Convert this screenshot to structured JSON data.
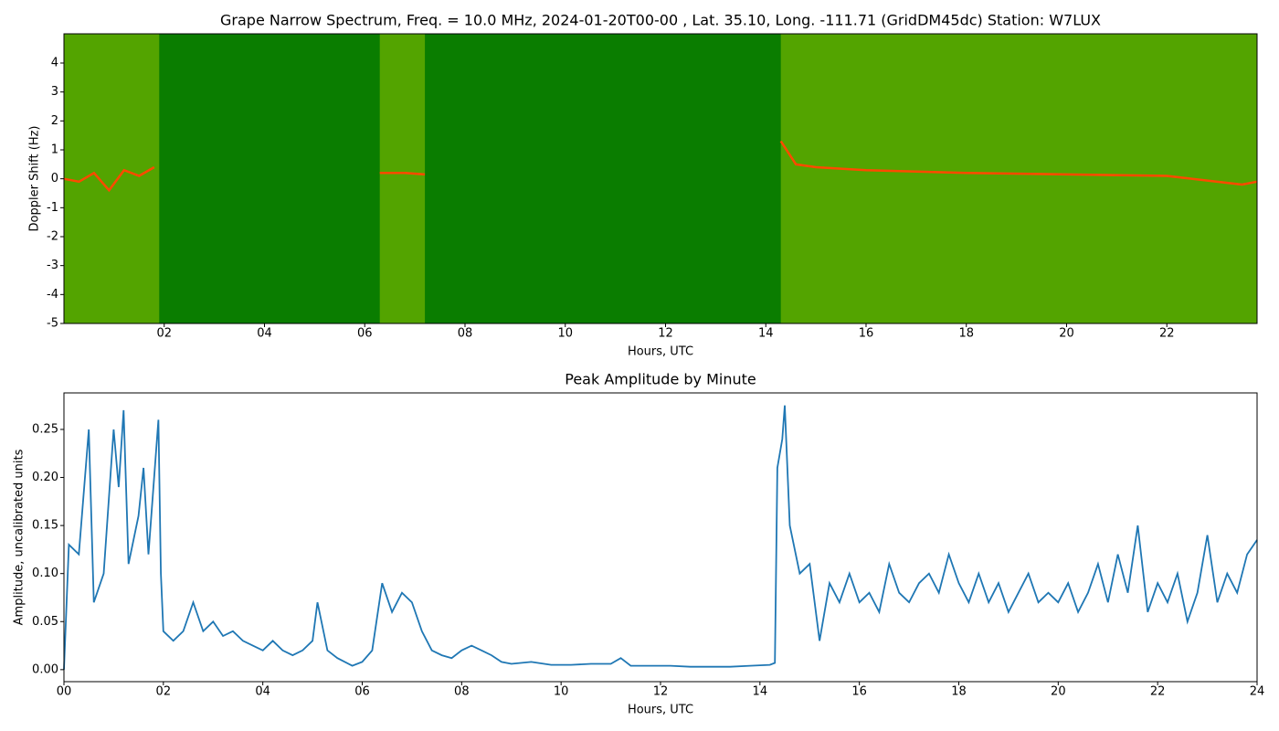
{
  "chart_data": [
    {
      "type": "spectrogram",
      "title": "Grape Narrow Spectrum, Freq. = 10.0 MHz, 2024-01-20T00-00 , Lat.  35.10, Long. -111.71 (GridDM45dc) Station: W7LUX",
      "xlabel": "Hours, UTC",
      "ylabel": "Doppler Shift (Hz)",
      "xlim": [
        0,
        23.8
      ],
      "ylim": [
        -5,
        5.01
      ],
      "xticks": [
        {
          "value": 2,
          "label": "02"
        },
        {
          "value": 4,
          "label": "04"
        },
        {
          "value": 6,
          "label": "06"
        },
        {
          "value": 8,
          "label": "08"
        },
        {
          "value": 10,
          "label": "10"
        },
        {
          "value": 12,
          "label": "12"
        },
        {
          "value": 14,
          "label": "14"
        },
        {
          "value": 16,
          "label": "16"
        },
        {
          "value": 18,
          "label": "18"
        },
        {
          "value": 20,
          "label": "20"
        },
        {
          "value": 22,
          "label": "22"
        }
      ],
      "yticks": [
        -5,
        -4,
        -3,
        -2,
        -1,
        0,
        1,
        2,
        3,
        4
      ],
      "background_color": "#0a7d00",
      "bright_color": "#8fc400",
      "bright_spans": [
        [
          0,
          1.9
        ],
        [
          6.3,
          7.2
        ],
        [
          14.3,
          23.8
        ]
      ],
      "color": "#ff4a00",
      "x": [
        0,
        0.3,
        0.6,
        0.9,
        1.2,
        1.5,
        1.8,
        1.9,
        6.3,
        6.8,
        7.2,
        7.3,
        14.3,
        14.6,
        15,
        16,
        18,
        20,
        22,
        23.5,
        23.8
      ],
      "values": [
        0,
        -0.1,
        0.2,
        -0.4,
        0.3,
        0.1,
        0.4,
        null,
        0.2,
        0.2,
        0.15,
        null,
        1.3,
        0.5,
        0.4,
        0.3,
        0.2,
        0.15,
        0.1,
        -0.2,
        -0.1
      ]
    },
    {
      "type": "line",
      "title": "Peak Amplitude by Minute",
      "xlabel": "Hours, UTC",
      "ylabel": "Amplitude, uncalibrated units",
      "xlim": [
        0,
        24
      ],
      "ylim": [
        -0.0125,
        0.288
      ],
      "xticks": [
        {
          "value": 0,
          "label": "00"
        },
        {
          "value": 2,
          "label": "02"
        },
        {
          "value": 4,
          "label": "04"
        },
        {
          "value": 6,
          "label": "06"
        },
        {
          "value": 8,
          "label": "08"
        },
        {
          "value": 10,
          "label": "10"
        },
        {
          "value": 12,
          "label": "12"
        },
        {
          "value": 14,
          "label": "14"
        },
        {
          "value": 16,
          "label": "16"
        },
        {
          "value": 18,
          "label": "18"
        },
        {
          "value": 20,
          "label": "20"
        },
        {
          "value": 22,
          "label": "22"
        },
        {
          "value": 24,
          "label": "24"
        }
      ],
      "yticks": [
        {
          "value": 0,
          "label": "0.00"
        },
        {
          "value": 0.05,
          "label": "0.05"
        },
        {
          "value": 0.1,
          "label": "0.10"
        },
        {
          "value": 0.15,
          "label": "0.15"
        },
        {
          "value": 0.2,
          "label": "0.20"
        },
        {
          "value": 0.25,
          "label": "0.25"
        }
      ],
      "color": "#1f77b4",
      "x": [
        0,
        0.1,
        0.3,
        0.5,
        0.6,
        0.8,
        1.0,
        1.1,
        1.2,
        1.3,
        1.5,
        1.6,
        1.7,
        1.9,
        1.95,
        2.0,
        2.2,
        2.4,
        2.6,
        2.8,
        3.0,
        3.2,
        3.4,
        3.6,
        3.8,
        4.0,
        4.2,
        4.4,
        4.6,
        4.8,
        5.0,
        5.1,
        5.3,
        5.5,
        5.8,
        6.0,
        6.2,
        6.4,
        6.6,
        6.8,
        7.0,
        7.2,
        7.4,
        7.6,
        7.8,
        8.0,
        8.2,
        8.4,
        8.6,
        8.8,
        9.0,
        9.4,
        9.8,
        10.2,
        10.6,
        11.0,
        11.2,
        11.4,
        11.8,
        12.2,
        12.6,
        13.0,
        13.4,
        13.8,
        14.2,
        14.3,
        14.35,
        14.45,
        14.5,
        14.6,
        14.8,
        15.0,
        15.2,
        15.4,
        15.6,
        15.8,
        16.0,
        16.2,
        16.4,
        16.6,
        16.8,
        17.0,
        17.2,
        17.4,
        17.6,
        17.8,
        18.0,
        18.2,
        18.4,
        18.6,
        18.8,
        19.0,
        19.2,
        19.4,
        19.6,
        19.8,
        20.0,
        20.2,
        20.4,
        20.6,
        20.8,
        21.0,
        21.2,
        21.4,
        21.6,
        21.8,
        22.0,
        22.2,
        22.4,
        22.6,
        22.8,
        23.0,
        23.2,
        23.4,
        23.6,
        23.8,
        24.0
      ],
      "values": [
        0.0,
        0.13,
        0.12,
        0.25,
        0.07,
        0.1,
        0.25,
        0.19,
        0.27,
        0.11,
        0.16,
        0.21,
        0.12,
        0.26,
        0.1,
        0.04,
        0.03,
        0.04,
        0.07,
        0.04,
        0.05,
        0.035,
        0.04,
        0.03,
        0.025,
        0.02,
        0.03,
        0.02,
        0.015,
        0.02,
        0.03,
        0.07,
        0.02,
        0.012,
        0.004,
        0.008,
        0.02,
        0.09,
        0.06,
        0.08,
        0.07,
        0.04,
        0.02,
        0.015,
        0.012,
        0.02,
        0.025,
        0.02,
        0.015,
        0.008,
        0.006,
        0.008,
        0.005,
        0.005,
        0.006,
        0.006,
        0.012,
        0.004,
        0.004,
        0.004,
        0.003,
        0.003,
        0.003,
        0.004,
        0.005,
        0.007,
        0.21,
        0.24,
        0.275,
        0.15,
        0.1,
        0.11,
        0.03,
        0.09,
        0.07,
        0.1,
        0.07,
        0.08,
        0.06,
        0.11,
        0.08,
        0.07,
        0.09,
        0.1,
        0.08,
        0.12,
        0.09,
        0.07,
        0.1,
        0.07,
        0.09,
        0.06,
        0.08,
        0.1,
        0.07,
        0.08,
        0.07,
        0.09,
        0.06,
        0.08,
        0.11,
        0.07,
        0.12,
        0.08,
        0.15,
        0.06,
        0.09,
        0.07,
        0.1,
        0.05,
        0.08,
        0.14,
        0.07,
        0.1,
        0.08,
        0.12,
        0.135
      ]
    }
  ]
}
